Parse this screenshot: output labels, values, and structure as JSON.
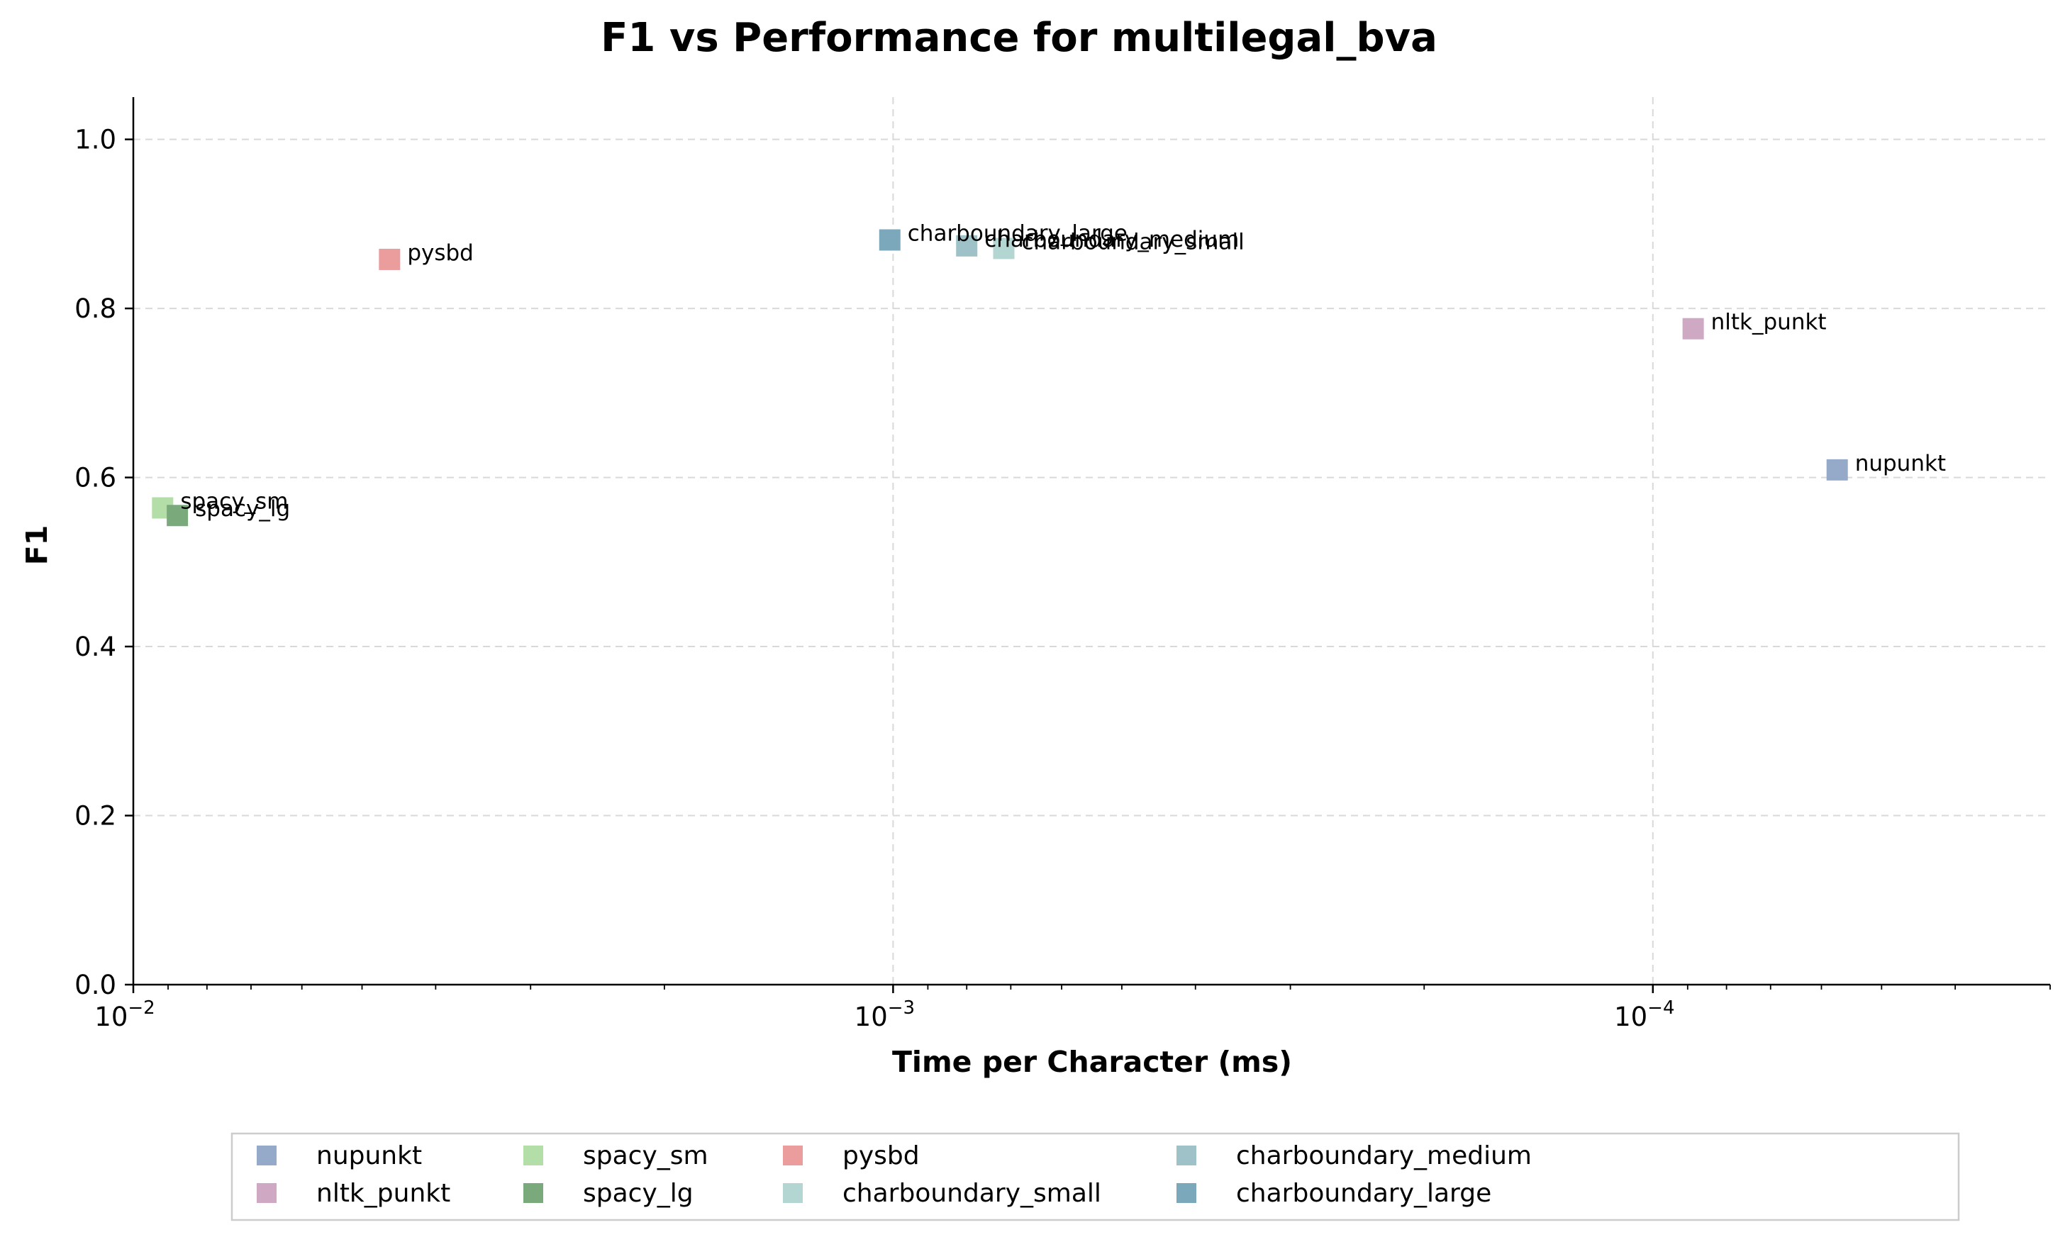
{
  "chart_data": {
    "type": "scatter",
    "title": "F1 vs Performance for multilegal_bva",
    "xlabel": "Time per Character (ms)",
    "ylabel": "F1",
    "x_scale": "log",
    "x_inverted": true,
    "xlim": [
      0.01,
      3e-05
    ],
    "ylim": [
      0,
      1.05
    ],
    "xticks": [
      {
        "value": 0.01,
        "base": "10",
        "exp": "−2"
      },
      {
        "value": 0.001,
        "base": "10",
        "exp": "−3"
      },
      {
        "value": 0.0001,
        "base": "10",
        "exp": "−4"
      }
    ],
    "yticks": [
      "0.0",
      "0.2",
      "0.4",
      "0.6",
      "0.8",
      "1.0"
    ],
    "grid": true,
    "legend_position": "bottom",
    "series": [
      {
        "name": "nupunkt",
        "x": 5.72e-05,
        "y": 0.609,
        "color": "#95a9c8"
      },
      {
        "name": "nltk_punkt",
        "x": 8.85e-05,
        "y": 0.776,
        "color": "#cfa9c4"
      },
      {
        "name": "spacy_sm",
        "x": 0.00915,
        "y": 0.564,
        "color": "#b4dea7"
      },
      {
        "name": "spacy_lg",
        "x": 0.00875,
        "y": 0.555,
        "color": "#7aaa7c"
      },
      {
        "name": "pysbd",
        "x": 0.0046,
        "y": 0.858,
        "color": "#eb9c9c"
      },
      {
        "name": "charboundary_small",
        "x": 0.000715,
        "y": 0.871,
        "color": "#b4d6d3"
      },
      {
        "name": "charboundary_medium",
        "x": 0.0008,
        "y": 0.874,
        "color": "#9fc2c9"
      },
      {
        "name": "charboundary_large",
        "x": 0.00101,
        "y": 0.881,
        "color": "#7ca8bc"
      }
    ],
    "legend_order": [
      "nupunkt",
      "nltk_punkt",
      "spacy_sm",
      "spacy_lg",
      "pysbd",
      "charboundary_small",
      "charboundary_medium",
      "charboundary_large"
    ]
  }
}
